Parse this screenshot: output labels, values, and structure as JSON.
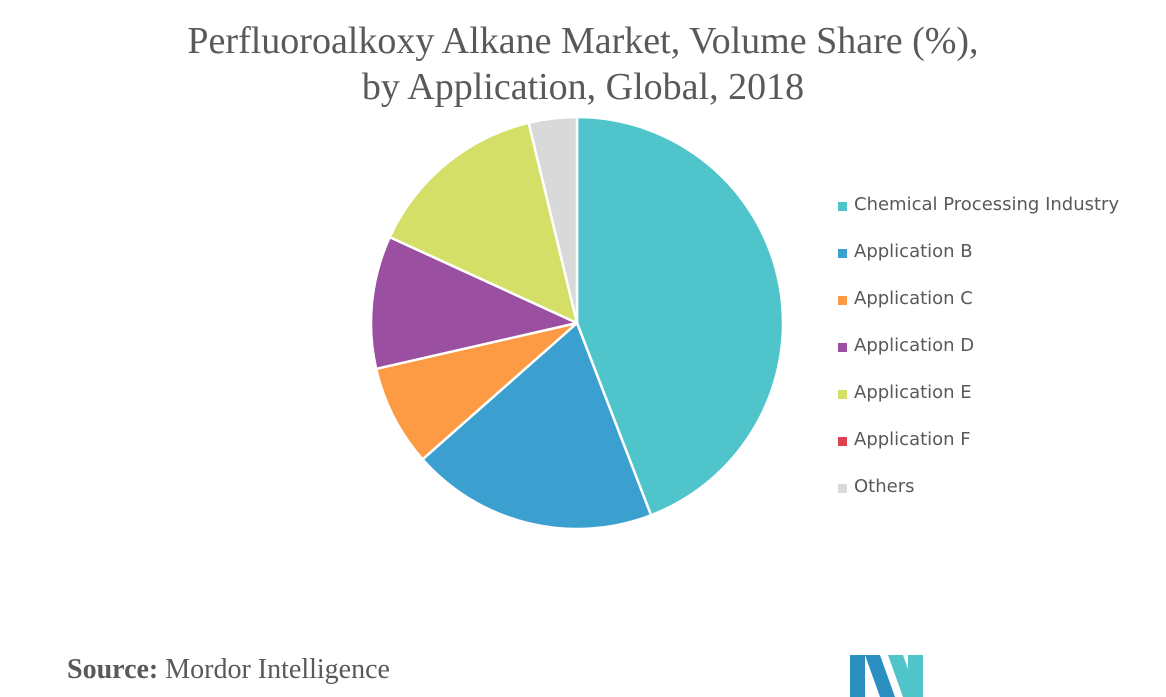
{
  "chart_data": {
    "type": "pie",
    "title_lines": [
      "Perfluoroalkoxy Alkane Market, Volume Share (%),",
      "by Application, Global, 2018"
    ],
    "slices": [
      {
        "label": "Chemical Processing Industry",
        "value": 44.5,
        "color": "#4FC4CA"
      },
      {
        "label": "Application B",
        "value": 19.5,
        "color": "#3B9FD0"
      },
      {
        "label": "Application C",
        "value": 8.0,
        "color": "#FC9B43"
      },
      {
        "label": "Application D",
        "value": 10.5,
        "color": "#9A4FA0"
      },
      {
        "label": "Application E",
        "value": 14.5,
        "color": "#D3DF66"
      },
      {
        "label": "Application F",
        "value": 0.0,
        "color": "#E0414F"
      },
      {
        "label": "Others",
        "value": 3.8,
        "color": "#D9D9D9"
      }
    ],
    "start_angle_deg": 0,
    "direction": "clockwise",
    "legend_position": "right"
  },
  "source": {
    "label": "Source:",
    "text": "Mordor Intelligence"
  },
  "logo": {
    "name": "mordor-intelligence-logo",
    "colors": [
      "#2B8FC1",
      "#4FC4CA"
    ]
  }
}
